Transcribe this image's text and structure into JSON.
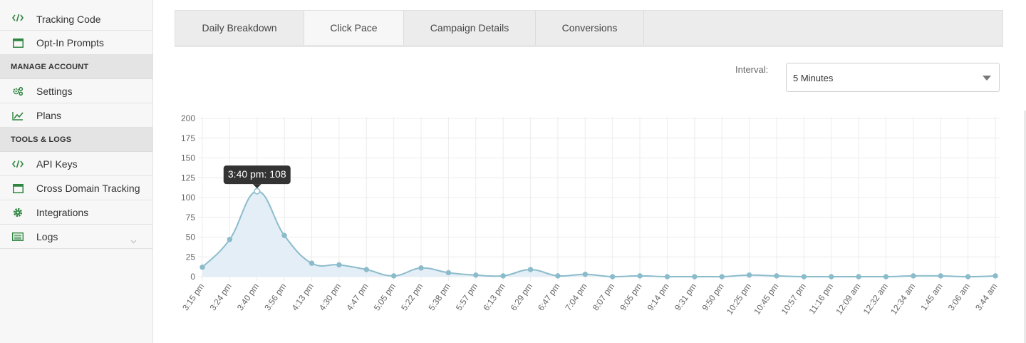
{
  "sidebar": {
    "items_top": [
      {
        "label": "Tracking Code",
        "icon": "code-icon"
      },
      {
        "label": "Opt-In Prompts",
        "icon": "window-icon"
      }
    ],
    "manage_heading": "MANAGE ACCOUNT",
    "items_manage": [
      {
        "label": "Settings",
        "icon": "cogs-icon"
      },
      {
        "label": "Plans",
        "icon": "line-chart-icon"
      }
    ],
    "tools_heading": "TOOLS & LOGS",
    "items_tools": [
      {
        "label": "API Keys",
        "icon": "code-icon"
      },
      {
        "label": "Cross Domain Tracking",
        "icon": "window-icon"
      },
      {
        "label": "Integrations",
        "icon": "gear-icon"
      },
      {
        "label": "Logs",
        "icon": "list-icon"
      }
    ]
  },
  "tabs": [
    {
      "label": "Daily Breakdown",
      "active": false
    },
    {
      "label": "Click Pace",
      "active": true
    },
    {
      "label": "Campaign Details",
      "active": false
    },
    {
      "label": "Conversions",
      "active": false
    }
  ],
  "interval": {
    "label": "Interval:",
    "value": "5 Minutes"
  },
  "colors": {
    "accent": "#2e8540",
    "line": "#8bbccc",
    "fill": "#e4eef6",
    "tooltip_bg": "#333333"
  },
  "tooltip": {
    "text": "3:40 pm: 108"
  },
  "chart_data": {
    "type": "area",
    "title": "",
    "xlabel": "",
    "ylabel": "",
    "ylim": [
      0,
      200
    ],
    "yticks": [
      0,
      25,
      50,
      75,
      100,
      125,
      150,
      175,
      200
    ],
    "x": [
      "3:15 pm",
      "3:24 pm",
      "3:40 pm",
      "3:56 pm",
      "4:13 pm",
      "4:30 pm",
      "4:47 pm",
      "5:05 pm",
      "5:22 pm",
      "5:38 pm",
      "5:57 pm",
      "6:13 pm",
      "6:29 pm",
      "6:47 pm",
      "7:04 pm",
      "8:07 pm",
      "9:05 pm",
      "9:14 pm",
      "9:31 pm",
      "9:50 pm",
      "10:25 pm",
      "10:45 pm",
      "10:57 pm",
      "11:16 pm",
      "12:09 am",
      "12:32 am",
      "12:34 am",
      "1:45 am",
      "3:06 am",
      "3:44 am"
    ],
    "values": [
      12,
      47,
      108,
      52,
      17,
      15,
      9,
      1,
      11,
      5,
      2,
      1,
      9,
      1,
      3,
      0,
      1,
      0,
      0,
      0,
      2,
      1,
      0,
      0,
      0,
      0,
      1,
      1,
      0,
      1
    ],
    "grid": true,
    "highlight_index": 2
  }
}
